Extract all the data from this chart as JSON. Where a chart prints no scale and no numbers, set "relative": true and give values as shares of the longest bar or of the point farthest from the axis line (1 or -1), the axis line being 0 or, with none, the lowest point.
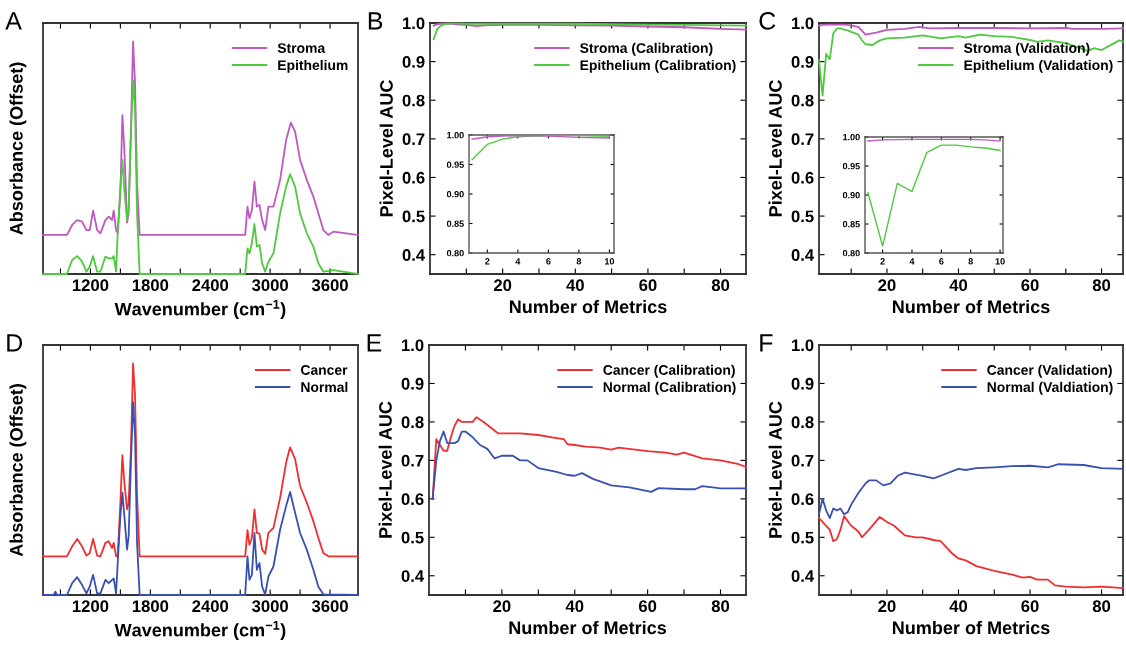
{
  "chart_data": [
    {
      "type": "line",
      "title": "A",
      "xlabel": "Wavenumber (cm$^{−1}$)",
      "ylabel": "Absorbance (Offset)",
      "relative": true,
      "legend": "top right",
      "xlim": [
        725,
        3880
      ],
      "xticks": [
        {
          "value": 900,
          "label": null
        },
        1200,
        {
          "value": 1500,
          "label": null
        },
        1800,
        {
          "value": 2100,
          "label": null
        },
        2400,
        {
          "value": 2700,
          "label": null
        },
        3000,
        {
          "value": 3300,
          "label": null
        },
        3600
      ],
      "series": [
        {
          "name": "Stroma",
          "color": "#c058c0",
          "x": [
            725,
            965,
            1017,
            1067,
            1117,
            1160,
            1193,
            1227,
            1267,
            1300,
            1350,
            1383,
            1417,
            1433,
            1457,
            1473,
            1500,
            1520,
            1540,
            1567,
            1583,
            1607,
            1627,
            1647,
            1667,
            1693,
            2750,
            2773,
            2793,
            2817,
            2843,
            2867,
            2893,
            2920,
            2950,
            2983,
            3033,
            3100,
            3160,
            3207,
            3250,
            3300,
            3367,
            3433,
            3483,
            3533,
            3583,
            3633,
            3880
          ],
          "values": [
            0.168,
            0.168,
            0.211,
            0.232,
            0.225,
            0.189,
            0.189,
            0.273,
            0.189,
            0.175,
            0.232,
            0.247,
            0.232,
            0.273,
            0.189,
            0.175,
            0.347,
            0.684,
            0.534,
            0.221,
            0.261,
            0.634,
            1.0,
            0.821,
            0.39,
            0.168,
            0.168,
            0.29,
            0.24,
            0.275,
            0.397,
            0.29,
            0.297,
            0.232,
            0.189,
            0.29,
            0.29,
            0.405,
            0.577,
            0.651,
            0.613,
            0.491,
            0.405,
            0.333,
            0.261,
            0.189,
            0.168,
            0.182,
            0.168
          ]
        },
        {
          "name": "Epithelium",
          "color": "#50c840",
          "x": [
            725,
            965,
            1017,
            1067,
            1117,
            1160,
            1193,
            1227,
            1267,
            1300,
            1350,
            1383,
            1417,
            1433,
            1457,
            1473,
            1500,
            1520,
            1540,
            1567,
            1583,
            1607,
            1627,
            1647,
            1667,
            1693,
            2750,
            2773,
            2793,
            2817,
            2843,
            2867,
            2893,
            2920,
            2950,
            2983,
            3033,
            3100,
            3160,
            3200,
            3250,
            3300,
            3367,
            3433,
            3483,
            3533,
            3633,
            3880
          ],
          "values": [
            0,
            0,
            0.06,
            0.077,
            0.053,
            0.01,
            0.032,
            0.077,
            0.01,
            0.01,
            0.075,
            0.067,
            0.067,
            0.077,
            0.01,
            0.175,
            0.376,
            0.491,
            0.362,
            0.232,
            0.29,
            0.62,
            0.835,
            0.706,
            0.261,
            0,
            0,
            0.11,
            0.089,
            0.132,
            0.215,
            0.118,
            0.125,
            0.046,
            0.01,
            0.053,
            0.089,
            0.261,
            0.376,
            0.429,
            0.376,
            0.261,
            0.175,
            0.118,
            0.046,
            0.01,
            0.017,
            0
          ]
        }
      ]
    },
    {
      "type": "line",
      "title": "B",
      "xlabel": "Number of Metrics",
      "ylabel": "Pixel-Level AUC",
      "legend": "top right",
      "xlim": [
        0,
        87
      ],
      "ylim": [
        0.35,
        1.0
      ],
      "xticks": [
        {
          "value": 10,
          "label": null
        },
        20,
        {
          "value": 30,
          "label": null
        },
        40,
        {
          "value": 50,
          "label": null
        },
        60,
        {
          "value": 70,
          "label": null
        },
        80
      ],
      "yticks": [
        {
          "value": 0.4,
          "label": "0.4"
        },
        {
          "value": 0.5,
          "label": "0.5"
        },
        {
          "value": 0.6,
          "label": "0.6"
        },
        {
          "value": 0.7,
          "label": "0.7"
        },
        {
          "value": 0.8,
          "label": "0.8"
        },
        {
          "value": 0.9,
          "label": "0.9"
        },
        {
          "value": 1.0,
          "label": "1.0"
        }
      ],
      "series": [
        {
          "name": "Stroma (Calibration)",
          "color": "#c058c0",
          "x": [
            1,
            2,
            3,
            4,
            6,
            8,
            10,
            13,
            15,
            20,
            30,
            40,
            50,
            60,
            70,
            80,
            87
          ],
          "values": [
            0.993,
            0.997,
            0.998,
            0.999,
            0.998,
            0.996,
            0.995,
            0.992,
            0.994,
            0.995,
            0.995,
            0.994,
            0.993,
            0.991,
            0.989,
            0.985,
            0.983
          ]
        },
        {
          "name": "Epithelium (Calibration)",
          "color": "#50c840",
          "x": [
            1,
            2,
            3,
            4,
            5,
            6,
            8,
            10,
            20,
            30,
            40,
            50,
            60,
            70,
            80,
            87
          ],
          "values": [
            0.958,
            0.984,
            0.993,
            0.997,
            0.998,
            0.999,
            0.999,
            0.998,
            0.998,
            0.998,
            0.998,
            0.997,
            0.996,
            0.995,
            0.994,
            0.993
          ]
        }
      ]
    },
    {
      "type": "line",
      "xlim": [
        0.8,
        10.3
      ],
      "ylim": [
        0.8,
        1.0
      ],
      "xticks": [
        2,
        4,
        6,
        8,
        10
      ],
      "yticks": [
        {
          "value": 0.8,
          "label": "0.80"
        },
        {
          "value": 0.85,
          "label": "0.85"
        },
        {
          "value": 0.9,
          "label": "0.90"
        },
        {
          "value": 0.95,
          "label": "0.95"
        },
        {
          "value": 1.0,
          "label": "1.00"
        }
      ],
      "series": [
        {
          "color": "#50c840",
          "x": [
            1,
            2,
            3,
            4,
            5,
            6,
            8,
            10
          ],
          "values": [
            0.958,
            0.984,
            0.993,
            0.997,
            0.998,
            0.999,
            0.999,
            0.998
          ]
        },
        {
          "color": "#c058c0",
          "x": [
            1,
            2,
            3,
            4,
            6,
            8,
            10
          ],
          "values": [
            0.993,
            0.997,
            0.998,
            0.999,
            0.998,
            0.996,
            0.995
          ]
        }
      ]
    },
    {
      "type": "line",
      "title": "C",
      "xlabel": "Number of Metrics",
      "ylabel": "Pixel-Level AUC",
      "legend": "top right",
      "xlim": [
        1,
        86
      ],
      "ylim": [
        0.35,
        1.0
      ],
      "xticks": [
        {
          "value": 10,
          "label": null
        },
        20,
        {
          "value": 30,
          "label": null
        },
        40,
        {
          "value": 50,
          "label": null
        },
        60,
        {
          "value": 70,
          "label": null
        },
        80
      ],
      "yticks": [
        {
          "value": 0.4,
          "label": "0.4"
        },
        {
          "value": 0.5,
          "label": "0.5"
        },
        {
          "value": 0.6,
          "label": "0.6"
        },
        {
          "value": 0.7,
          "label": "0.7"
        },
        {
          "value": 0.8,
          "label": "0.8"
        },
        {
          "value": 0.9,
          "label": "0.9"
        },
        {
          "value": 1.0,
          "label": "1.0"
        }
      ],
      "series": [
        {
          "name": "Stroma (Validation)",
          "color": "#c058c0",
          "x": [
            1,
            2,
            4,
            6,
            8,
            9,
            10,
            12,
            14,
            17,
            20,
            25,
            29,
            32,
            40,
            50,
            60,
            70,
            72,
            80,
            86
          ],
          "values": [
            0.993,
            0.995,
            0.996,
            0.996,
            0.996,
            0.995,
            0.993,
            0.99,
            0.97,
            0.975,
            0.982,
            0.985,
            0.99,
            0.986,
            0.987,
            0.987,
            0.986,
            0.987,
            0.985,
            0.985,
            0.986
          ]
        },
        {
          "name": "Epithelium (Validation)",
          "color": "#50c840",
          "x": [
            1,
            2,
            3,
            4,
            5,
            6,
            7,
            8,
            9,
            10,
            12,
            13,
            14,
            16,
            18,
            20,
            25,
            30,
            35,
            40,
            42,
            46,
            50,
            55,
            60,
            62,
            65,
            70,
            74,
            76,
            78,
            80,
            82,
            85,
            86
          ],
          "values": [
            0.904,
            0.812,
            0.92,
            0.906,
            0.973,
            0.986,
            0.986,
            0.983,
            0.981,
            0.977,
            0.97,
            0.955,
            0.945,
            0.943,
            0.955,
            0.96,
            0.962,
            0.968,
            0.96,
            0.966,
            0.962,
            0.97,
            0.966,
            0.964,
            0.956,
            0.951,
            0.955,
            0.948,
            0.935,
            0.928,
            0.935,
            0.93,
            0.94,
            0.955,
            0.952
          ]
        }
      ]
    },
    {
      "type": "line",
      "xlim": [
        0.8,
        10.2
      ],
      "ylim": [
        0.8,
        1.0
      ],
      "xticks": [
        2,
        4,
        6,
        8,
        10
      ],
      "yticks": [
        {
          "value": 0.8,
          "label": "0.80"
        },
        {
          "value": 0.85,
          "label": "0.85"
        },
        {
          "value": 0.9,
          "label": "0.90"
        },
        {
          "value": 0.95,
          "label": "0.95"
        },
        {
          "value": 1.0,
          "label": "1.00"
        }
      ],
      "series": [
        {
          "color": "#c058c0",
          "x": [
            1,
            2,
            4,
            6,
            8,
            9,
            10
          ],
          "values": [
            0.993,
            0.995,
            0.996,
            0.996,
            0.996,
            0.995,
            0.993
          ]
        },
        {
          "color": "#50c840",
          "x": [
            1,
            2,
            3,
            4,
            5,
            6,
            7,
            8,
            9,
            10
          ],
          "values": [
            0.904,
            0.812,
            0.92,
            0.906,
            0.973,
            0.986,
            0.986,
            0.983,
            0.981,
            0.977
          ]
        }
      ]
    },
    {
      "type": "line",
      "title": "D",
      "xlabel": "Wavenumber (cm$^{−1}$)",
      "ylabel": "Absorbance (Offset)",
      "relative": true,
      "legend": "top right",
      "xlim": [
        725,
        3880
      ],
      "xticks": [
        {
          "value": 900,
          "label": null
        },
        1200,
        {
          "value": 1500,
          "label": null
        },
        1800,
        {
          "value": 2100,
          "label": null
        },
        2400,
        {
          "value": 2700,
          "label": null
        },
        3000,
        {
          "value": 3300,
          "label": null
        },
        3600
      ],
      "series": [
        {
          "name": "Cancer",
          "color": "#f03030",
          "x": [
            725,
            965,
            1017,
            1067,
            1117,
            1160,
            1193,
            1227,
            1267,
            1300,
            1350,
            1383,
            1417,
            1433,
            1457,
            1473,
            1500,
            1520,
            1540,
            1567,
            1583,
            1607,
            1627,
            1647,
            1667,
            1693,
            2750,
            2773,
            2793,
            2817,
            2843,
            2867,
            2893,
            2920,
            2950,
            2983,
            3033,
            3100,
            3160,
            3200,
            3250,
            3300,
            3367,
            3433,
            3483,
            3533,
            3583,
            3880
          ],
          "values": [
            0.167,
            0.167,
            0.21,
            0.242,
            0.21,
            0.17,
            0.181,
            0.242,
            0.17,
            0.167,
            0.225,
            0.232,
            0.203,
            0.225,
            0.167,
            0.167,
            0.399,
            0.604,
            0.486,
            0.37,
            0.399,
            0.645,
            1.0,
            0.862,
            0.428,
            0.167,
            0.167,
            0.28,
            0.217,
            0.246,
            0.37,
            0.268,
            0.265,
            0.196,
            0.178,
            0.268,
            0.29,
            0.42,
            0.572,
            0.638,
            0.587,
            0.471,
            0.399,
            0.319,
            0.246,
            0.181,
            0.167,
            0.167
          ]
        },
        {
          "name": "Normal",
          "color": "#3a50b0",
          "x": [
            725,
            832,
            849,
            865,
            965,
            1017,
            1067,
            1117,
            1160,
            1193,
            1227,
            1267,
            1300,
            1350,
            1383,
            1417,
            1433,
            1457,
            1473,
            1500,
            1520,
            1540,
            1567,
            1583,
            1607,
            1627,
            1647,
            1667,
            1693,
            2750,
            2773,
            2793,
            2817,
            2843,
            2867,
            2893,
            2920,
            2950,
            2983,
            3033,
            3100,
            3160,
            3200,
            3250,
            3300,
            3367,
            3433,
            3483,
            3533,
            3880
          ],
          "values": [
            0,
            0,
            0.014,
            0,
            0,
            0.051,
            0.077,
            0.043,
            0.007,
            0.036,
            0.087,
            0.007,
            0.007,
            0.065,
            0.051,
            0.065,
            0.072,
            0.007,
            0.138,
            0.341,
            0.442,
            0.341,
            0.196,
            0.254,
            0.587,
            0.833,
            0.688,
            0.225,
            0,
            0,
            0.167,
            0.065,
            0.087,
            0.268,
            0.109,
            0.138,
            0.036,
            0.003,
            0.08,
            0.123,
            0.283,
            0.384,
            0.445,
            0.355,
            0.268,
            0.196,
            0.109,
            0.036,
            0.003,
            0
          ]
        }
      ]
    },
    {
      "type": "line",
      "title": "E",
      "xlabel": "Number of Metrics",
      "ylabel": "Pixel-Level AUC",
      "legend": "top right",
      "xlim": [
        0,
        87
      ],
      "ylim": [
        0.35,
        1.0
      ],
      "xticks": [
        {
          "value": 10,
          "label": null
        },
        20,
        {
          "value": 30,
          "label": null
        },
        40,
        {
          "value": 50,
          "label": null
        },
        60,
        {
          "value": 70,
          "label": null
        },
        80
      ],
      "yticks": [
        {
          "value": 0.4,
          "label": "0.4"
        },
        {
          "value": 0.5,
          "label": "0.5"
        },
        {
          "value": 0.6,
          "label": "0.6"
        },
        {
          "value": 0.7,
          "label": "0.7"
        },
        {
          "value": 0.8,
          "label": "0.8"
        },
        {
          "value": 0.9,
          "label": "0.9"
        },
        {
          "value": 1.0,
          "label": "1.0"
        }
      ],
      "series": [
        {
          "name": "Cancer (Calibration)",
          "color": "#f03030",
          "x": [
            1,
            2,
            3,
            4,
            5,
            6,
            7,
            8,
            9,
            10,
            12,
            13,
            15,
            17,
            19,
            22,
            25,
            30,
            35,
            37,
            38,
            40,
            43,
            47,
            50,
            52,
            60,
            65,
            68,
            70,
            75,
            80,
            85,
            87
          ],
          "values": [
            0.6,
            0.755,
            0.74,
            0.725,
            0.725,
            0.76,
            0.79,
            0.807,
            0.8,
            0.8,
            0.8,
            0.812,
            0.8,
            0.785,
            0.77,
            0.77,
            0.77,
            0.766,
            0.758,
            0.755,
            0.742,
            0.74,
            0.736,
            0.733,
            0.728,
            0.733,
            0.724,
            0.72,
            0.715,
            0.72,
            0.705,
            0.7,
            0.69,
            0.683
          ]
        },
        {
          "name": "Normal (Calibration)",
          "color": "#3a50b0",
          "x": [
            1,
            2,
            3,
            4,
            5,
            7,
            8,
            9,
            10,
            12,
            14,
            16,
            18,
            20,
            23,
            25,
            27,
            30,
            35,
            38,
            40,
            42,
            45,
            50,
            55,
            60,
            61,
            63,
            70,
            73,
            75,
            80,
            87
          ],
          "values": [
            0.6,
            0.7,
            0.75,
            0.775,
            0.745,
            0.745,
            0.75,
            0.775,
            0.775,
            0.76,
            0.74,
            0.73,
            0.705,
            0.712,
            0.712,
            0.7,
            0.7,
            0.68,
            0.67,
            0.662,
            0.66,
            0.667,
            0.652,
            0.635,
            0.63,
            0.62,
            0.618,
            0.628,
            0.625,
            0.625,
            0.633,
            0.627,
            0.627
          ]
        }
      ]
    },
    {
      "type": "line",
      "title": "F",
      "xlabel": "Number of Metrics",
      "ylabel": "Pixel-Level AUC",
      "legend": "top right",
      "xlim": [
        1,
        86
      ],
      "ylim": [
        0.35,
        1.0
      ],
      "xticks": [
        {
          "value": 10,
          "label": null
        },
        20,
        {
          "value": 30,
          "label": null
        },
        40,
        {
          "value": 50,
          "label": null
        },
        60,
        {
          "value": 70,
          "label": null
        },
        80
      ],
      "yticks": [
        {
          "value": 0.4,
          "label": "0.4"
        },
        {
          "value": 0.5,
          "label": "0.5"
        },
        {
          "value": 0.6,
          "label": "0.6"
        },
        {
          "value": 0.7,
          "label": "0.7"
        },
        {
          "value": 0.8,
          "label": "0.8"
        },
        {
          "value": 0.9,
          "label": "0.9"
        },
        {
          "value": 1.0,
          "label": "1.0"
        }
      ],
      "series": [
        {
          "name": "Cancer (Validation)",
          "color": "#f03030",
          "x": [
            1,
            3,
            4,
            5,
            6,
            7,
            8,
            10,
            12,
            13,
            15,
            18,
            20,
            22,
            25,
            28,
            30,
            33,
            35,
            38,
            40,
            42,
            45,
            50,
            55,
            58,
            60,
            62,
            65,
            67,
            70,
            75,
            80,
            86
          ],
          "values": [
            0.55,
            0.53,
            0.52,
            0.49,
            0.495,
            0.52,
            0.555,
            0.53,
            0.515,
            0.5,
            0.52,
            0.553,
            0.54,
            0.53,
            0.505,
            0.5,
            0.5,
            0.493,
            0.49,
            0.46,
            0.445,
            0.44,
            0.425,
            0.413,
            0.403,
            0.395,
            0.397,
            0.39,
            0.39,
            0.375,
            0.372,
            0.37,
            0.372,
            0.368
          ]
        },
        {
          "name": "Normal (Valdiation)",
          "color": "#3a50b0",
          "x": [
            1,
            2,
            3,
            4,
            5,
            6,
            7,
            8,
            9,
            10,
            12,
            14,
            15,
            17,
            19,
            21,
            23,
            25,
            30,
            33,
            35,
            40,
            42,
            45,
            50,
            55,
            60,
            65,
            68,
            75,
            80,
            86
          ],
          "values": [
            0.56,
            0.6,
            0.57,
            0.55,
            0.575,
            0.57,
            0.575,
            0.56,
            0.565,
            0.585,
            0.615,
            0.64,
            0.648,
            0.648,
            0.635,
            0.64,
            0.66,
            0.668,
            0.66,
            0.653,
            0.66,
            0.678,
            0.675,
            0.68,
            0.682,
            0.685,
            0.686,
            0.682,
            0.69,
            0.688,
            0.68,
            0.678
          ]
        }
      ]
    }
  ]
}
